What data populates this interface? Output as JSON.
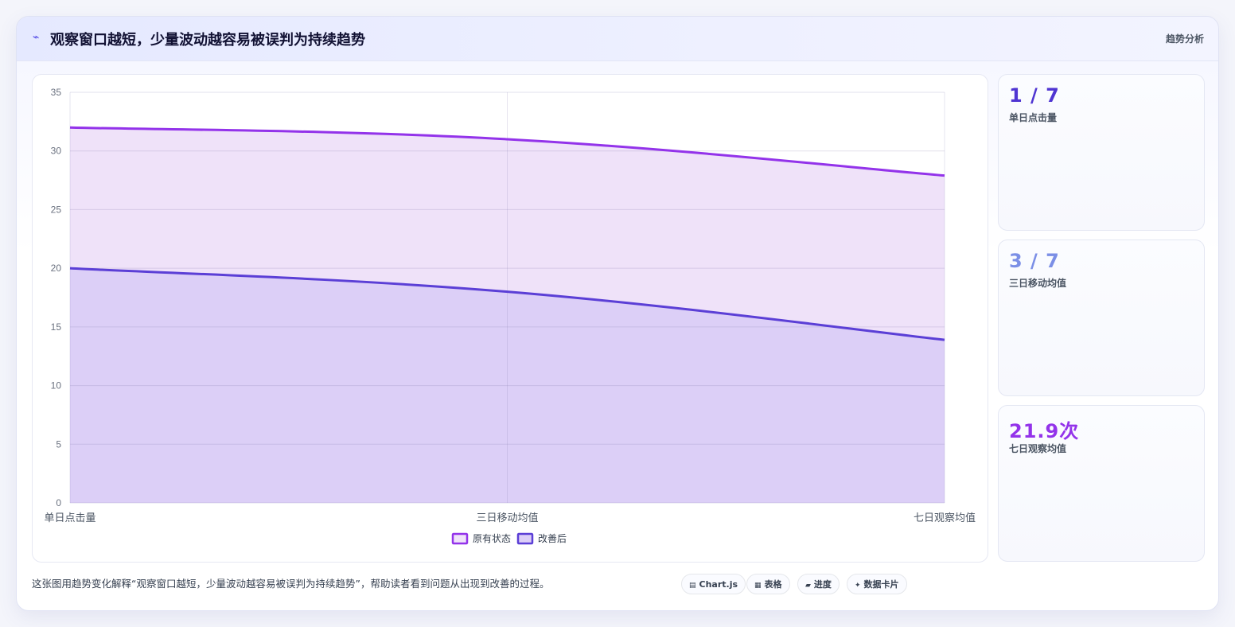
{
  "header": {
    "icon": "zigzag-icon",
    "title": "观察窗口越短，少量波动越容易被误判为持续趋势",
    "tag": "趋势分析"
  },
  "chart_data": {
    "type": "area",
    "categories": [
      "单日点击量",
      "三日移动均值",
      "七日观察均值"
    ],
    "series": [
      {
        "name": "原有状态",
        "values": [
          32,
          31,
          27.9
        ],
        "color": "#9333ea",
        "fill": "#efe2f9"
      },
      {
        "name": "改善后",
        "values": [
          20,
          18,
          13.9
        ],
        "color": "#5b3fd6",
        "fill": "#dccff7"
      }
    ],
    "ylim": [
      0,
      35
    ],
    "yticks": [
      0,
      5,
      10,
      15,
      20,
      25,
      30,
      35
    ],
    "grid": true,
    "legend": "bottom"
  },
  "stats": [
    {
      "value": "1 / 7",
      "label": "单日点击量",
      "color": "#4f35d2"
    },
    {
      "value": "3 / 7",
      "label": "三日移动均值",
      "color": "#7b8fe6"
    },
    {
      "value": "21.9次",
      "label": "七日观察均值",
      "color": "#9333ea"
    }
  ],
  "footer": {
    "text": "这张图用趋势变化解释“观察窗口越短，少量波动越容易被误判为持续趋势”，帮助读者看到问题从出现到改善的过程。",
    "pills": [
      {
        "icon": "chart-icon",
        "glyph": "▤",
        "label": "Chart.js"
      },
      {
        "icon": "table-icon",
        "glyph": "▦",
        "label": "表格"
      },
      {
        "icon": "progress-icon",
        "glyph": "▰",
        "label": "进度"
      },
      {
        "icon": "sparkle-icon",
        "glyph": "✦",
        "label": "数据卡片"
      }
    ]
  }
}
